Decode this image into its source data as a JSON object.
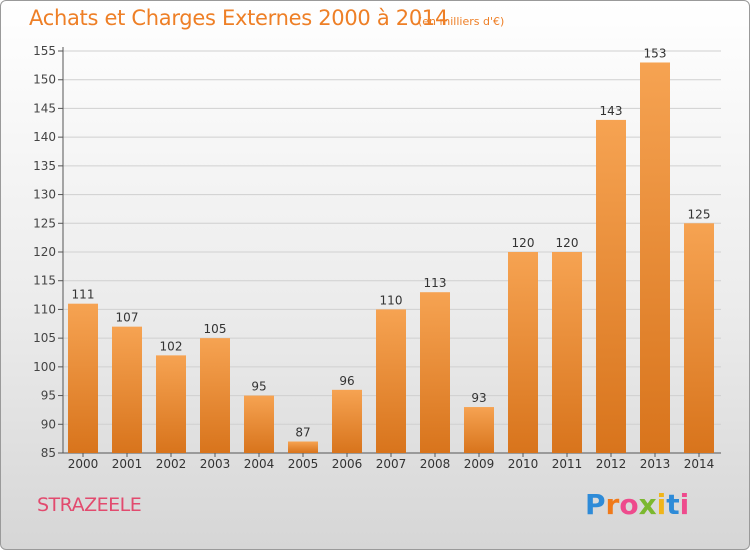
{
  "header": {
    "title": "Achats et Charges Externes 2000 à 2014",
    "subtitle": "(en milliers d'€)"
  },
  "footer": {
    "town": "STRAZEELE",
    "logo_text": "Proxiti"
  },
  "colors": {
    "bar_top": "#f6a352",
    "bar_bottom": "#d8741c",
    "title": "#ee7f26",
    "town": "#e24a6e",
    "grid": "#d0d0d0"
  },
  "chart_data": {
    "type": "bar",
    "title": "Achats et Charges Externes 2000 à 2014",
    "subtitle": "(en milliers d'€)",
    "categories": [
      "2000",
      "2001",
      "2002",
      "2003",
      "2004",
      "2005",
      "2006",
      "2007",
      "2008",
      "2009",
      "2010",
      "2011",
      "2012",
      "2013",
      "2014"
    ],
    "values": [
      111,
      107,
      102,
      105,
      95,
      87,
      96,
      110,
      113,
      93,
      120,
      120,
      143,
      153,
      125
    ],
    "ylim": [
      85,
      155
    ],
    "yticks": [
      85,
      90,
      95,
      100,
      105,
      110,
      115,
      120,
      125,
      130,
      135,
      140,
      145,
      150,
      155
    ],
    "grid": true,
    "data_labels": true
  }
}
